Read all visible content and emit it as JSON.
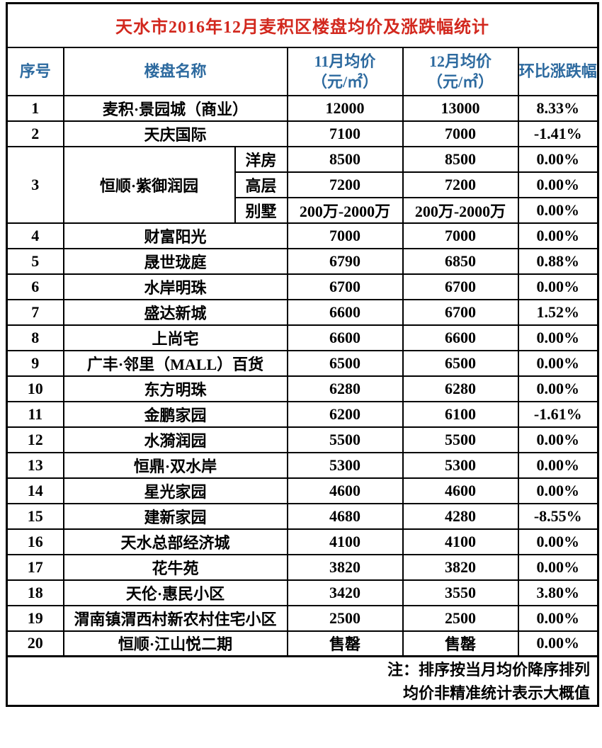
{
  "title": "天水市2016年12月麦积区楼盘均价及涨跌幅统计",
  "colors": {
    "title_text": "#d2281e",
    "header_text": "#2d6a9f",
    "border": "#000000",
    "background": "#ffffff"
  },
  "table": {
    "columns": {
      "index": "序号",
      "name": "楼盘名称",
      "nov": {
        "line1": "11月均价",
        "line2": "（元/㎡）"
      },
      "dec": {
        "line1": "12月均价",
        "line2": "（元/㎡）"
      },
      "change": "环比涨跌幅"
    },
    "rows": [
      {
        "no": "1",
        "name": "麦积·景园城（商业）",
        "nov": "12000",
        "dec": "13000",
        "chg": "8.33%"
      },
      {
        "no": "2",
        "name": "天庆国际",
        "nov": "7100",
        "dec": "7000",
        "chg": "-1.41%"
      },
      {
        "no": "3",
        "name": "恒顺·紫御润园",
        "subrows": [
          {
            "type": "洋房",
            "nov": "8500",
            "dec": "8500",
            "chg": "0.00%"
          },
          {
            "type": "高层",
            "nov": "7200",
            "dec": "7200",
            "chg": "0.00%"
          },
          {
            "type": "别墅",
            "nov": "200万-2000万",
            "dec": "200万-2000万",
            "chg": "0.00%"
          }
        ]
      },
      {
        "no": "4",
        "name": "财富阳光",
        "nov": "7000",
        "dec": "7000",
        "chg": "0.00%"
      },
      {
        "no": "5",
        "name": "晟世珑庭",
        "nov": "6790",
        "dec": "6850",
        "chg": "0.88%"
      },
      {
        "no": "6",
        "name": "水岸明珠",
        "nov": "6700",
        "dec": "6700",
        "chg": "0.00%"
      },
      {
        "no": "7",
        "name": "盛达新城",
        "nov": "6600",
        "dec": "6700",
        "chg": "1.52%"
      },
      {
        "no": "8",
        "name": "上尚宅",
        "nov": "6600",
        "dec": "6600",
        "chg": "0.00%"
      },
      {
        "no": "9",
        "name": "广丰·邻里（MALL）百货",
        "nov": "6500",
        "dec": "6500",
        "chg": "0.00%"
      },
      {
        "no": "10",
        "name": "东方明珠",
        "nov": "6280",
        "dec": "6280",
        "chg": "0.00%"
      },
      {
        "no": "11",
        "name": "金鹏家园",
        "nov": "6200",
        "dec": "6100",
        "chg": "-1.61%"
      },
      {
        "no": "12",
        "name": "水漪润园",
        "nov": "5500",
        "dec": "5500",
        "chg": "0.00%"
      },
      {
        "no": "13",
        "name": "恒鼎·双水岸",
        "nov": "5300",
        "dec": "5300",
        "chg": "0.00%"
      },
      {
        "no": "14",
        "name": "星光家园",
        "nov": "4600",
        "dec": "4600",
        "chg": "0.00%"
      },
      {
        "no": "15",
        "name": "建新家园",
        "nov": "4680",
        "dec": "4280",
        "chg": "-8.55%"
      },
      {
        "no": "16",
        "name": "天水总部经济城",
        "nov": "4100",
        "dec": "4100",
        "chg": "0.00%"
      },
      {
        "no": "17",
        "name": "花牛苑",
        "nov": "3820",
        "dec": "3820",
        "chg": "0.00%"
      },
      {
        "no": "18",
        "name": "天伦·惠民小区",
        "nov": "3420",
        "dec": "3550",
        "chg": "3.80%"
      },
      {
        "no": "19",
        "name": "渭南镇渭西村新农村住宅小区",
        "nov": "2500",
        "dec": "2500",
        "chg": "0.00%"
      },
      {
        "no": "20",
        "name": "恒顺·江山悦二期",
        "nov": "售罄",
        "dec": "售罄",
        "chg": "0.00%"
      }
    ]
  },
  "note": {
    "line1": "注：排序按当月均价降序排列",
    "line2": "均价非精准统计表示大概值"
  }
}
